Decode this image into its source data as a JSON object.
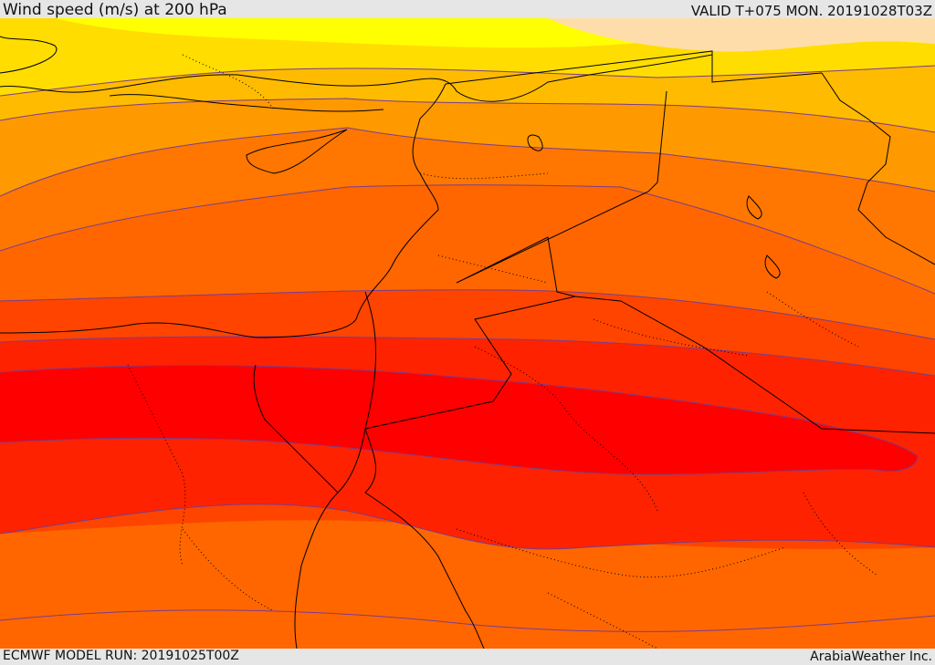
{
  "header": {
    "title": "Wind speed (m/s) at 200 hPa",
    "valid_time": "VALID T+075 MON. 20191028T03Z"
  },
  "footer": {
    "model_run": "ECMWF MODEL RUN: 20191025T00Z",
    "provider": "ArabiaWeather Inc."
  },
  "map": {
    "colors": {
      "band_lightest": "#ffddaa",
      "band_1": "#ffff00",
      "band_2": "#ffdd00",
      "band_3": "#ffbb00",
      "band_4": "#ff9900",
      "band_5": "#ff7700",
      "band_6": "#ff6600",
      "band_7": "#ff4400",
      "band_8": "#ff2200",
      "band_core": "#ff0000",
      "contour_line": "#7a3c8c",
      "border_line": "#000000"
    }
  }
}
